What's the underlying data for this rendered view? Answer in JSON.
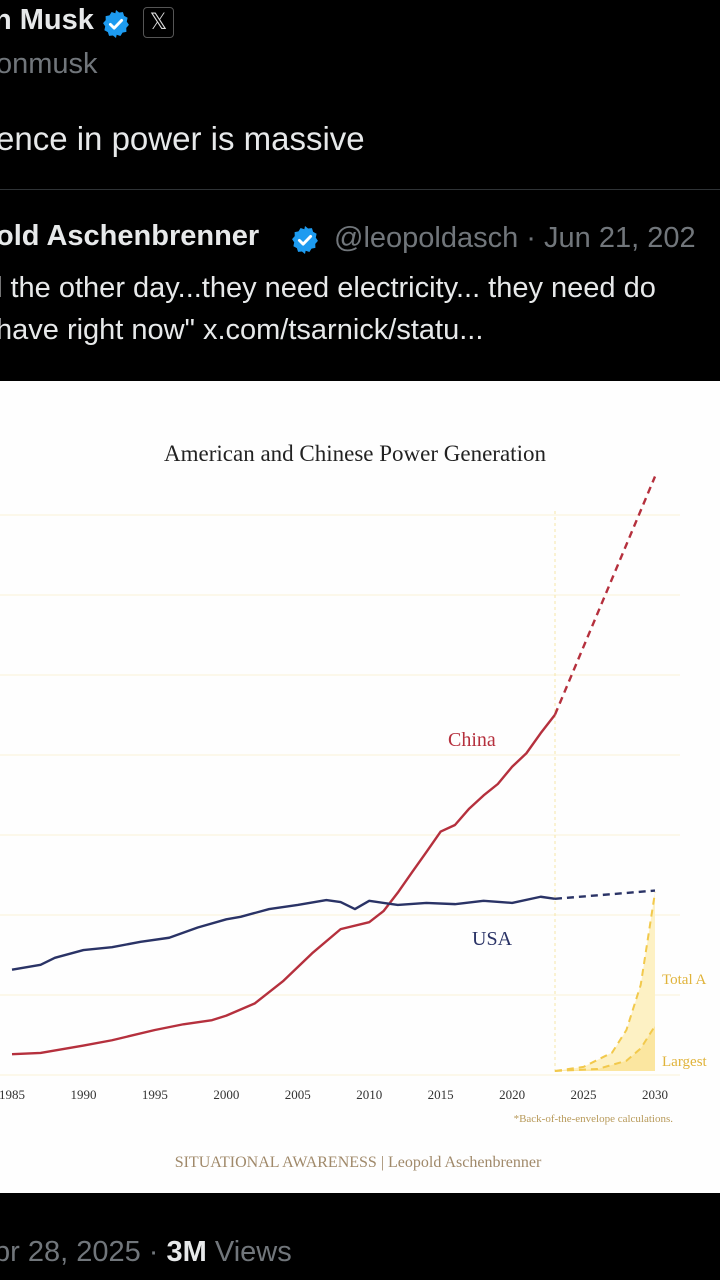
{
  "post": {
    "author_name": "n Musk",
    "handle": "onmusk",
    "text": "ence in power is massive",
    "timestamp": "pr 28, 2025",
    "views_count": "3M",
    "views_label": "Views"
  },
  "quoted": {
    "author_name": "old Aschenbrenner",
    "handle": "@leopoldasch",
    "date": "Jun 21, 202",
    "line1": "l the other day...they need electricity... they need do",
    "line2": "have right now\"  x.com/tsarnick/statu..."
  },
  "icons": {
    "verified": "verified-badge-icon",
    "x_logo": "x-logo-icon"
  },
  "colors": {
    "china": "#b5303d",
    "usa": "#2a3366",
    "ai": "#f2c94c",
    "verified": "#1d9bf0"
  },
  "chart_data": {
    "type": "line",
    "title": "American and Chinese Power Generation",
    "x_ticks": [
      "1985",
      "1990",
      "1995",
      "2000",
      "2005",
      "2010",
      "2015",
      "2020",
      "2025",
      "2030"
    ],
    "xlim": [
      1985,
      2030
    ],
    "grid": true,
    "y_axis_labels_visible": false,
    "series": [
      {
        "name": "China",
        "style": "solid",
        "color": "#b5303d",
        "x": [
          1985,
          1987,
          1990,
          1992,
          1995,
          1997,
          1999,
          2000,
          2002,
          2004,
          2006,
          2008,
          2010,
          2011,
          2012,
          2013,
          2014,
          2015,
          2016,
          2017,
          2018,
          2019,
          2020,
          2021,
          2022,
          2023
        ],
        "y": [
          0.41,
          0.44,
          0.62,
          0.75,
          1.0,
          1.14,
          1.24,
          1.35,
          1.65,
          2.2,
          2.87,
          3.46,
          3.63,
          3.9,
          4.35,
          4.85,
          5.34,
          5.84,
          6.0,
          6.4,
          6.72,
          7.0,
          7.42,
          7.75,
          8.24,
          8.69
        ]
      },
      {
        "name": "China (projection)",
        "style": "dashed",
        "color": "#b5303d",
        "x": [
          2023,
          2030
        ],
        "y": [
          8.69,
          14.5
        ]
      },
      {
        "name": "USA",
        "style": "solid",
        "color": "#2a3366",
        "x": [
          1985,
          1987,
          1988,
          1990,
          1992,
          1994,
          1996,
          1998,
          2000,
          2001,
          2003,
          2005,
          2007,
          2008,
          2009,
          2010,
          2012,
          2014,
          2016,
          2018,
          2020,
          2022,
          2023
        ],
        "y": [
          2.47,
          2.59,
          2.76,
          2.95,
          3.02,
          3.15,
          3.25,
          3.5,
          3.7,
          3.76,
          3.95,
          4.05,
          4.17,
          4.12,
          3.95,
          4.15,
          4.05,
          4.1,
          4.07,
          4.15,
          4.1,
          4.25,
          4.2
        ],
        "note": "values in approximate relative units (y-axis unlabeled)"
      },
      {
        "name": "USA (projection)",
        "style": "dashed",
        "color": "#2a3366",
        "x": [
          2023,
          2030
        ],
        "y": [
          4.2,
          4.4
        ]
      },
      {
        "name": "Total AI",
        "style": "dashed",
        "color": "#f2c94c",
        "x": [
          2023,
          2025,
          2027,
          2028,
          2029,
          2030
        ],
        "y": [
          0.0,
          0.1,
          0.45,
          1.0,
          2.1,
          4.35
        ]
      },
      {
        "name": "Largest",
        "style": "dashed",
        "color": "#f2c94c",
        "x": [
          2023,
          2026,
          2028,
          2029,
          2030
        ],
        "y": [
          0.0,
          0.05,
          0.25,
          0.55,
          1.1
        ]
      }
    ],
    "labels": {
      "china": "China",
      "usa": "USA",
      "total_ai": "Total A",
      "largest": "Largest"
    },
    "footnote": "*Back-of-the-envelope calculations.",
    "credit": "SITUATIONAL AWARENESS | Leopold Aschenbrenner"
  }
}
